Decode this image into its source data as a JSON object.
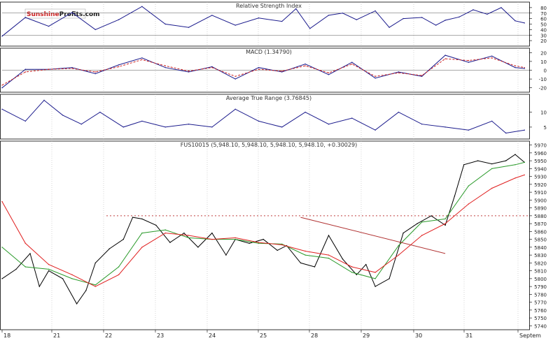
{
  "logo": {
    "part1": "Sunshine",
    "part2": "Profits.com"
  },
  "chart_data": [
    {
      "type": "line",
      "title": "Relative Strength Index",
      "ylim": [
        10,
        90
      ],
      "ticks": [
        20,
        30,
        40,
        50,
        60,
        70,
        80
      ],
      "reference_lines": [
        30,
        70
      ],
      "series": [
        {
          "color": "#1a1a8c",
          "x": [
            0,
            0.5,
            1,
            1.5,
            2,
            2.5,
            3,
            3.5,
            4,
            4.5,
            5,
            5.5,
            6,
            6.3,
            6.6,
            7,
            7.3,
            7.6,
            8,
            8.3,
            8.6,
            9,
            9.3,
            9.5,
            9.8,
            10.1,
            10.4,
            10.7,
            11,
            11.2
          ],
          "values": [
            28,
            62,
            46,
            71,
            40,
            58,
            82,
            50,
            44,
            66,
            48,
            61,
            55,
            78,
            42,
            66,
            70,
            58,
            74,
            44,
            60,
            62,
            48,
            57,
            63,
            76,
            68,
            80,
            56,
            52
          ]
        }
      ]
    },
    {
      "type": "line",
      "title": "MACD (1.34790)",
      "ylim": [
        -25,
        25
      ],
      "ticks": [
        -20,
        -10,
        0,
        10,
        20
      ],
      "reference_lines": [
        0
      ],
      "series": [
        {
          "color": "#1a1a8c",
          "x": [
            0,
            0.5,
            1,
            1.5,
            2,
            2.5,
            3,
            3.5,
            4,
            4.5,
            5,
            5.5,
            6,
            6.5,
            7,
            7.5,
            8,
            8.5,
            9,
            9.5,
            10,
            10.5,
            11,
            11.2
          ],
          "values": [
            -20,
            1,
            1,
            3,
            -4,
            6,
            14,
            3,
            -2,
            4,
            -10,
            3,
            -2,
            7,
            -5,
            9,
            -9,
            -2,
            -7,
            17,
            9,
            16,
            3,
            2
          ]
        },
        {
          "color": "#cc2222",
          "x": [
            0,
            0.5,
            1,
            1.5,
            2,
            2.5,
            3,
            3.5,
            4,
            4.5,
            5,
            5.5,
            6,
            6.5,
            7,
            7.5,
            8,
            8.5,
            9,
            9.5,
            10,
            10.5,
            11,
            11.2
          ],
          "values": [
            -17,
            -2,
            1,
            2,
            -2,
            4,
            12,
            5,
            -1,
            3,
            -7,
            1,
            -1,
            5,
            -3,
            7,
            -7,
            -3,
            -6,
            13,
            11,
            14,
            5,
            3
          ]
        }
      ]
    },
    {
      "type": "line",
      "title": "Average True Range (3.76845)",
      "ylim": [
        1,
        16
      ],
      "ticks": [
        5,
        10
      ],
      "series": [
        {
          "color": "#1a1a8c",
          "x": [
            0,
            0.5,
            0.9,
            1.3,
            1.7,
            2.1,
            2.6,
            3.0,
            3.5,
            4.0,
            4.5,
            5.0,
            5.5,
            6.0,
            6.5,
            7.0,
            7.5,
            8.0,
            8.5,
            9.0,
            9.5,
            10.0,
            10.5,
            10.8,
            11.2
          ],
          "values": [
            11,
            7,
            14,
            9,
            6,
            10,
            5,
            7,
            5,
            6,
            5,
            11,
            7,
            5,
            10,
            6,
            8,
            4,
            10,
            6,
            5,
            4,
            7,
            3,
            4
          ]
        }
      ]
    },
    {
      "type": "line",
      "title": "FUS10015 (5,948.10, 5,948.10, 5,948.10, 5,948.10, +0.30029)",
      "x_tick_labels": [
        "18",
        "21",
        "22",
        "23",
        "24",
        "25",
        "28",
        "29",
        "30",
        "31",
        "Septem"
      ],
      "ylim": [
        5735,
        5975
      ],
      "ticks": [
        5740,
        5750,
        5760,
        5770,
        5780,
        5790,
        5800,
        5810,
        5820,
        5830,
        5840,
        5850,
        5860,
        5870,
        5880,
        5890,
        5900,
        5910,
        5920,
        5930,
        5940,
        5950,
        5960,
        5970
      ],
      "reference_lines": [
        5880
      ],
      "series": [
        {
          "name": "price",
          "color": "#000000",
          "x": [
            0,
            0.3,
            0.6,
            0.8,
            1.0,
            1.3,
            1.6,
            1.8,
            2.0,
            2.3,
            2.6,
            2.8,
            3.0,
            3.3,
            3.6,
            3.9,
            4.2,
            4.5,
            4.8,
            5.0,
            5.3,
            5.6,
            5.9,
            6.1,
            6.4,
            6.7,
            7.0,
            7.3,
            7.6,
            7.8,
            8.0,
            8.3,
            8.6,
            8.9,
            9.2,
            9.5,
            9.7,
            9.9,
            10.2,
            10.5,
            10.8,
            11.0,
            11.2
          ],
          "values": [
            5800,
            5812,
            5832,
            5790,
            5810,
            5800,
            5768,
            5785,
            5820,
            5838,
            5850,
            5878,
            5876,
            5868,
            5846,
            5858,
            5840,
            5858,
            5830,
            5850,
            5845,
            5850,
            5836,
            5842,
            5820,
            5815,
            5855,
            5825,
            5805,
            5818,
            5790,
            5800,
            5858,
            5870,
            5880,
            5868,
            5905,
            5945,
            5950,
            5946,
            5950,
            5958,
            5948
          ]
        },
        {
          "name": "fast-ma",
          "color": "#2a9a2a",
          "x": [
            0,
            0.5,
            1.0,
            1.5,
            2.0,
            2.5,
            3.0,
            3.5,
            4.0,
            4.5,
            5.0,
            5.5,
            6.0,
            6.5,
            7.0,
            7.5,
            8.0,
            8.5,
            9.0,
            9.5,
            10.0,
            10.5,
            11.0,
            11.2
          ],
          "values": [
            5840,
            5815,
            5812,
            5800,
            5792,
            5815,
            5858,
            5862,
            5852,
            5850,
            5850,
            5845,
            5844,
            5830,
            5826,
            5808,
            5800,
            5842,
            5872,
            5876,
            5918,
            5940,
            5945,
            5948
          ]
        },
        {
          "name": "slow-ma",
          "color": "#e02020",
          "x": [
            0,
            0.5,
            1.0,
            1.5,
            2.0,
            2.5,
            3.0,
            3.5,
            4.0,
            4.5,
            5.0,
            5.5,
            6.0,
            6.5,
            7.0,
            7.5,
            8.0,
            8.5,
            9.0,
            9.5,
            10.0,
            10.5,
            11.0,
            11.2
          ],
          "values": [
            5898,
            5845,
            5818,
            5805,
            5790,
            5805,
            5840,
            5858,
            5855,
            5850,
            5852,
            5846,
            5843,
            5835,
            5830,
            5815,
            5808,
            5830,
            5855,
            5870,
            5895,
            5915,
            5928,
            5932
          ]
        }
      ],
      "trend_lines": [
        {
          "color": "#b03030",
          "x": [
            6.4,
            9.5
          ],
          "values": [
            5878,
            5832
          ]
        }
      ]
    }
  ]
}
